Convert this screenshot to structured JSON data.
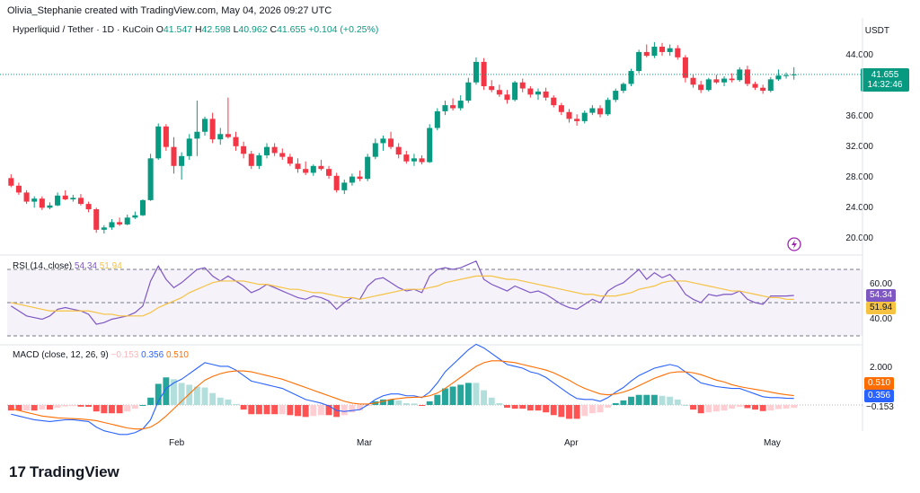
{
  "header": {
    "credit": "Olivia_Stephanie created with TradingView.com, May 04, 2026 09:27 UTC",
    "symbol": "Hyperliquid / Tether · 1D · KuCoin",
    "o_label": "O",
    "o": "41.547",
    "h_label": "H",
    "h": "42.598",
    "l_label": "L",
    "l": "40.962",
    "c_label": "C",
    "c": "41.655",
    "change": "+0.104 (+0.25%)",
    "currency": "USDT"
  },
  "price_axis": {
    "ticks": [
      "44.000",
      "40.000",
      "36.000",
      "32.000",
      "28.000",
      "24.000",
      "20.000"
    ],
    "last_price": "41.655",
    "countdown": "14:32:46"
  },
  "rsi": {
    "label": "RSI (14, close)",
    "rsi_value": "54.34",
    "ma_value": "51.94",
    "ticks": [
      "60.00",
      "40.00"
    ]
  },
  "macd": {
    "label": "MACD (close, 12, 26, 9)",
    "hist_value": "−0.153",
    "macd_value": "0.356",
    "signal_value": "0.510",
    "ticks": [
      "2.000"
    ]
  },
  "x_axis": {
    "labels": [
      "Feb",
      "Mar",
      "Apr",
      "May"
    ]
  },
  "brand": {
    "logo_text": "TradingView"
  },
  "colors": {
    "up": "#089981",
    "down": "#f23645",
    "rsi": "#7e57c2",
    "rsi_ma": "#f5c242",
    "macd": "#2962ff",
    "signal": "#ff6d00",
    "hist_up": "#26a69a",
    "hist_up_light": "#b2dfdb",
    "hist_down": "#ff5252",
    "hist_down_light": "#ffcdd2"
  },
  "chart_data": [
    {
      "type": "candlestick",
      "title": "Hyperliquid / Tether · 1D · KuCoin",
      "ylabel": "USDT",
      "ylim": [
        18.5,
        46.5
      ],
      "x_labels": [
        "Feb",
        "Mar",
        "Apr",
        "May"
      ],
      "candles": [
        [
          28.0,
          28.5,
          26.8,
          27.0
        ],
        [
          27.0,
          27.4,
          25.8,
          26.1
        ],
        [
          26.1,
          26.4,
          24.6,
          24.9
        ],
        [
          24.9,
          25.6,
          24.1,
          25.3
        ],
        [
          25.3,
          25.6,
          23.8,
          24.1
        ],
        [
          24.1,
          24.8,
          23.9,
          24.4
        ],
        [
          24.4,
          26.1,
          24.3,
          25.7
        ],
        [
          25.7,
          26.4,
          25.1,
          25.2
        ],
        [
          25.2,
          25.8,
          24.9,
          25.4
        ],
        [
          25.4,
          25.9,
          24.4,
          24.6
        ],
        [
          24.6,
          24.9,
          23.5,
          23.9
        ],
        [
          23.9,
          24.1,
          20.8,
          21.2
        ],
        [
          21.2,
          21.8,
          20.7,
          21.5
        ],
        [
          21.5,
          22.6,
          21.2,
          22.2
        ],
        [
          22.2,
          22.8,
          21.7,
          21.9
        ],
        [
          21.9,
          23.2,
          21.8,
          22.8
        ],
        [
          22.8,
          23.6,
          22.6,
          23.1
        ],
        [
          23.1,
          25.2,
          23.0,
          25.1
        ],
        [
          25.1,
          31.2,
          25.0,
          30.6
        ],
        [
          30.6,
          35.2,
          30.4,
          34.8
        ],
        [
          34.8,
          35.1,
          31.6,
          32.1
        ],
        [
          32.1,
          33.4,
          28.6,
          29.6
        ],
        [
          29.6,
          31.4,
          27.8,
          30.9
        ],
        [
          30.9,
          33.8,
          30.4,
          33.2
        ],
        [
          33.2,
          38.2,
          30.9,
          34.1
        ],
        [
          34.1,
          36.1,
          33.6,
          35.8
        ],
        [
          35.8,
          36.6,
          32.6,
          33.1
        ],
        [
          33.1,
          34.6,
          32.4,
          33.8
        ],
        [
          33.8,
          38.6,
          33.2,
          33.4
        ],
        [
          33.4,
          34.1,
          31.6,
          32.2
        ],
        [
          32.2,
          32.8,
          30.6,
          31.2
        ],
        [
          31.2,
          31.6,
          29.2,
          29.6
        ],
        [
          29.6,
          31.3,
          29.2,
          31.0
        ],
        [
          31.0,
          32.6,
          30.6,
          32.1
        ],
        [
          32.1,
          32.6,
          30.9,
          31.3
        ],
        [
          31.3,
          31.9,
          30.4,
          30.8
        ],
        [
          30.8,
          31.2,
          29.6,
          29.9
        ],
        [
          29.9,
          30.6,
          28.7,
          29.2
        ],
        [
          29.2,
          30.2,
          28.4,
          28.7
        ],
        [
          28.7,
          29.8,
          28.3,
          29.6
        ],
        [
          29.6,
          30.4,
          29.0,
          29.2
        ],
        [
          29.2,
          29.6,
          27.9,
          28.3
        ],
        [
          28.3,
          28.7,
          26.1,
          26.4
        ],
        [
          26.4,
          27.8,
          25.9,
          27.4
        ],
        [
          27.4,
          28.6,
          27.0,
          28.2
        ],
        [
          28.2,
          29.0,
          27.6,
          27.9
        ],
        [
          27.9,
          31.2,
          27.6,
          30.8
        ],
        [
          30.8,
          33.2,
          30.5,
          32.6
        ],
        [
          32.6,
          33.6,
          31.6,
          33.2
        ],
        [
          33.2,
          34.1,
          31.8,
          32.1
        ],
        [
          32.1,
          32.6,
          30.6,
          31.1
        ],
        [
          31.1,
          31.6,
          29.9,
          30.2
        ],
        [
          30.2,
          31.2,
          29.6,
          30.6
        ],
        [
          30.6,
          31.0,
          29.8,
          30.1
        ],
        [
          30.1,
          35.1,
          30.0,
          34.6
        ],
        [
          34.6,
          37.2,
          34.3,
          36.8
        ],
        [
          36.8,
          38.2,
          36.3,
          37.6
        ],
        [
          37.6,
          38.5,
          36.9,
          37.2
        ],
        [
          37.2,
          38.9,
          36.9,
          38.2
        ],
        [
          38.2,
          41.2,
          37.9,
          40.6
        ],
        [
          40.6,
          43.9,
          40.3,
          43.3
        ],
        [
          43.3,
          43.8,
          39.6,
          40.1
        ],
        [
          40.1,
          40.9,
          39.3,
          39.6
        ],
        [
          39.6,
          40.3,
          38.7,
          39.0
        ],
        [
          39.0,
          39.6,
          37.8,
          38.3
        ],
        [
          38.3,
          40.8,
          38.1,
          40.6
        ],
        [
          40.6,
          41.1,
          39.3,
          39.8
        ],
        [
          39.8,
          40.1,
          38.6,
          39.0
        ],
        [
          39.0,
          39.8,
          38.3,
          39.4
        ],
        [
          39.4,
          39.9,
          38.2,
          38.6
        ],
        [
          38.6,
          38.9,
          37.3,
          37.6
        ],
        [
          37.6,
          37.9,
          36.3,
          36.7
        ],
        [
          36.7,
          37.1,
          35.3,
          35.8
        ],
        [
          35.8,
          36.4,
          34.9,
          35.5
        ],
        [
          35.5,
          36.9,
          35.2,
          36.6
        ],
        [
          36.6,
          37.6,
          36.3,
          37.2
        ],
        [
          37.2,
          37.6,
          36.0,
          36.4
        ],
        [
          36.4,
          38.6,
          36.2,
          38.3
        ],
        [
          38.3,
          39.8,
          38.0,
          39.5
        ],
        [
          39.5,
          40.6,
          39.2,
          40.4
        ],
        [
          40.4,
          42.4,
          40.1,
          42.1
        ],
        [
          42.1,
          44.9,
          41.8,
          44.6
        ],
        [
          44.6,
          45.6,
          43.9,
          44.1
        ],
        [
          44.1,
          45.9,
          43.8,
          45.3
        ],
        [
          45.3,
          45.8,
          44.1,
          44.6
        ],
        [
          44.6,
          45.6,
          44.1,
          45.1
        ],
        [
          45.1,
          45.5,
          43.6,
          43.9
        ],
        [
          43.9,
          44.2,
          40.6,
          41.2
        ],
        [
          41.2,
          41.6,
          39.9,
          40.3
        ],
        [
          40.3,
          40.8,
          39.2,
          39.6
        ],
        [
          39.6,
          41.2,
          39.4,
          41.0
        ],
        [
          41.0,
          41.6,
          40.4,
          40.6
        ],
        [
          40.6,
          41.4,
          40.1,
          41.1
        ],
        [
          41.1,
          41.8,
          40.6,
          40.9
        ],
        [
          40.9,
          42.6,
          40.7,
          42.3
        ],
        [
          42.3,
          42.8,
          40.1,
          40.4
        ],
        [
          40.4,
          40.7,
          39.6,
          39.9
        ],
        [
          39.9,
          40.3,
          39.1,
          39.5
        ],
        [
          39.5,
          41.3,
          39.3,
          41.0
        ],
        [
          41.0,
          42.3,
          40.8,
          41.5
        ],
        [
          41.5,
          41.9,
          41.1,
          41.55
        ],
        [
          41.547,
          42.598,
          40.962,
          41.655
        ]
      ]
    },
    {
      "type": "line",
      "title": "RSI (14, close)",
      "ylim": [
        20,
        80
      ],
      "bands": [
        70,
        50,
        30
      ],
      "series": [
        {
          "name": "RSI",
          "values": [
            48,
            45,
            42,
            41,
            40,
            42,
            46,
            47,
            46,
            45,
            43,
            37,
            38,
            40,
            41,
            42,
            44,
            48,
            63,
            72,
            64,
            59,
            62,
            66,
            70,
            71,
            66,
            63,
            66,
            63,
            60,
            56,
            58,
            61,
            59,
            57,
            55,
            53,
            52,
            54,
            53,
            51,
            46,
            50,
            53,
            52,
            60,
            64,
            65,
            62,
            59,
            57,
            58,
            56,
            66,
            70,
            71,
            70,
            71,
            73,
            75,
            64,
            61,
            59,
            57,
            60,
            58,
            56,
            57,
            55,
            52,
            49,
            47,
            46,
            49,
            52,
            50,
            57,
            60,
            62,
            66,
            70,
            64,
            68,
            65,
            67,
            62,
            55,
            52,
            50,
            55,
            54,
            55,
            55,
            57,
            52,
            50,
            49,
            54,
            54,
            54,
            54.34
          ]
        },
        {
          "name": "RSI-based MA",
          "values": [
            50,
            49,
            48,
            47,
            46,
            45,
            45,
            45,
            45,
            45,
            45,
            44,
            43,
            43,
            42,
            42,
            42,
            42,
            44,
            47,
            49,
            51,
            53,
            56,
            58,
            60,
            62,
            63,
            63,
            63,
            63,
            62,
            61,
            61,
            60,
            59,
            58,
            58,
            57,
            56,
            56,
            55,
            54,
            53,
            53,
            52,
            53,
            54,
            55,
            56,
            57,
            58,
            58,
            58,
            59,
            60,
            62,
            63,
            64,
            65,
            66,
            66,
            66,
            65,
            64,
            64,
            63,
            62,
            61,
            60,
            59,
            58,
            57,
            56,
            55,
            55,
            54,
            54,
            54,
            55,
            56,
            58,
            59,
            60,
            62,
            63,
            63,
            63,
            62,
            61,
            60,
            59,
            58,
            57,
            57,
            56,
            55,
            54,
            53,
            53,
            52,
            51.94
          ]
        }
      ]
    },
    {
      "type": "line+bar",
      "title": "MACD (close, 12, 26, 9)",
      "ylim": [
        -2.6,
        3.4
      ],
      "series": [
        {
          "name": "MACD",
          "values": [
            -0.5,
            -0.6,
            -0.7,
            -0.8,
            -0.85,
            -0.9,
            -0.85,
            -0.8,
            -0.8,
            -0.85,
            -0.9,
            -1.2,
            -1.4,
            -1.5,
            -1.6,
            -1.6,
            -1.5,
            -1.3,
            -0.8,
            0.2,
            0.9,
            1.2,
            1.4,
            1.7,
            2.0,
            2.3,
            2.2,
            2.1,
            2.1,
            1.9,
            1.6,
            1.3,
            1.2,
            1.1,
            1.0,
            0.9,
            0.7,
            0.5,
            0.3,
            0.2,
            0.1,
            -0.05,
            -0.3,
            -0.35,
            -0.3,
            -0.25,
            0.0,
            0.3,
            0.5,
            0.6,
            0.6,
            0.5,
            0.5,
            0.4,
            0.7,
            1.2,
            1.8,
            2.2,
            2.6,
            3.0,
            3.3,
            3.1,
            2.8,
            2.5,
            2.2,
            2.1,
            2.0,
            1.8,
            1.7,
            1.5,
            1.2,
            0.9,
            0.6,
            0.35,
            0.3,
            0.3,
            0.2,
            0.4,
            0.7,
            0.95,
            1.3,
            1.6,
            1.8,
            2.0,
            2.1,
            2.2,
            2.1,
            1.8,
            1.5,
            1.2,
            1.1,
            1.0,
            0.95,
            0.9,
            0.9,
            0.75,
            0.6,
            0.45,
            0.4,
            0.4,
            0.37,
            0.356
          ]
        },
        {
          "name": "Signal",
          "values": [
            -0.2,
            -0.3,
            -0.4,
            -0.5,
            -0.6,
            -0.65,
            -0.7,
            -0.72,
            -0.74,
            -0.76,
            -0.8,
            -0.85,
            -0.95,
            -1.05,
            -1.15,
            -1.25,
            -1.3,
            -1.3,
            -1.2,
            -0.95,
            -0.6,
            -0.2,
            0.2,
            0.6,
            1.0,
            1.35,
            1.55,
            1.7,
            1.8,
            1.85,
            1.85,
            1.8,
            1.7,
            1.6,
            1.5,
            1.4,
            1.25,
            1.1,
            0.95,
            0.8,
            0.65,
            0.5,
            0.35,
            0.2,
            0.1,
            0.05,
            0.05,
            0.1,
            0.2,
            0.3,
            0.35,
            0.4,
            0.42,
            0.43,
            0.5,
            0.65,
            0.9,
            1.2,
            1.5,
            1.8,
            2.1,
            2.3,
            2.4,
            2.4,
            2.35,
            2.3,
            2.2,
            2.1,
            2.0,
            1.9,
            1.75,
            1.55,
            1.35,
            1.1,
            0.9,
            0.75,
            0.6,
            0.55,
            0.6,
            0.7,
            0.85,
            1.05,
            1.25,
            1.45,
            1.6,
            1.75,
            1.8,
            1.8,
            1.75,
            1.65,
            1.5,
            1.35,
            1.25,
            1.1,
            1.0,
            0.92,
            0.85,
            0.78,
            0.7,
            0.62,
            0.56,
            0.51
          ]
        }
      ]
    }
  ]
}
